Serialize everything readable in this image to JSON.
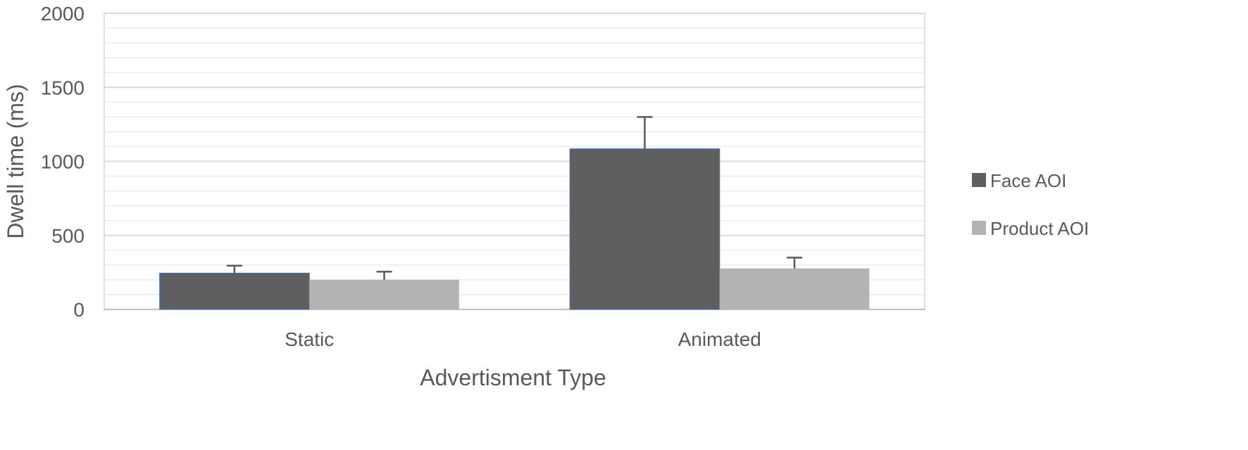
{
  "chart_data": {
    "type": "bar",
    "xlabel": "Advertisment Type",
    "ylabel": "Dwell time (ms)",
    "ylim": [
      0,
      2000
    ],
    "major_ticks": [
      0,
      500,
      1000,
      1500,
      2000
    ],
    "minor_step": 100,
    "grid": true,
    "legend_position": "right",
    "categories": [
      "Static",
      "Animated"
    ],
    "series": [
      {
        "name": "Face AOI",
        "color": "#5f5f5f",
        "values": [
          245,
          1085
        ],
        "error": [
          50,
          215
        ]
      },
      {
        "name": "Product AOI",
        "color": "#b3b3b3",
        "values": [
          200,
          277
        ],
        "error": [
          55,
          73
        ]
      }
    ]
  }
}
